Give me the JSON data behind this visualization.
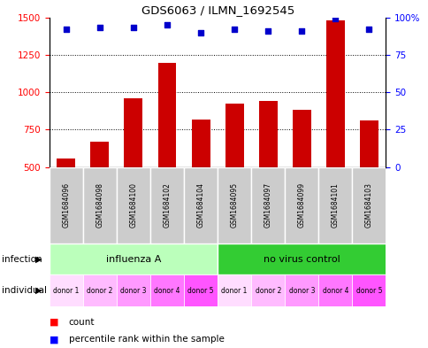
{
  "title": "GDS6063 / ILMN_1692545",
  "samples": [
    "GSM1684096",
    "GSM1684098",
    "GSM1684100",
    "GSM1684102",
    "GSM1684104",
    "GSM1684095",
    "GSM1684097",
    "GSM1684099",
    "GSM1684101",
    "GSM1684103"
  ],
  "counts": [
    555,
    670,
    960,
    1195,
    820,
    925,
    940,
    880,
    1480,
    810
  ],
  "percentile_ranks": [
    92,
    93,
    93,
    95,
    90,
    92,
    91,
    91,
    99,
    92
  ],
  "ylim_left": [
    500,
    1500
  ],
  "ylim_right": [
    0,
    100
  ],
  "yticks_left": [
    500,
    750,
    1000,
    1250,
    1500
  ],
  "yticks_right": [
    0,
    25,
    50,
    75,
    100
  ],
  "bar_color": "#cc0000",
  "dot_color": "#0000cc",
  "sample_bg_color": "#cccccc",
  "infect_color_1": "#bbffbb",
  "infect_color_2": "#33cc33",
  "donor_colors": [
    "#ffddff",
    "#ffbbff",
    "#ff99ff",
    "#ff77ff",
    "#ff55ff"
  ],
  "individual_labels": [
    "donor 1",
    "donor 2",
    "donor 3",
    "donor 4",
    "donor 5",
    "donor 1",
    "donor 2",
    "donor 3",
    "donor 4",
    "donor 5"
  ]
}
